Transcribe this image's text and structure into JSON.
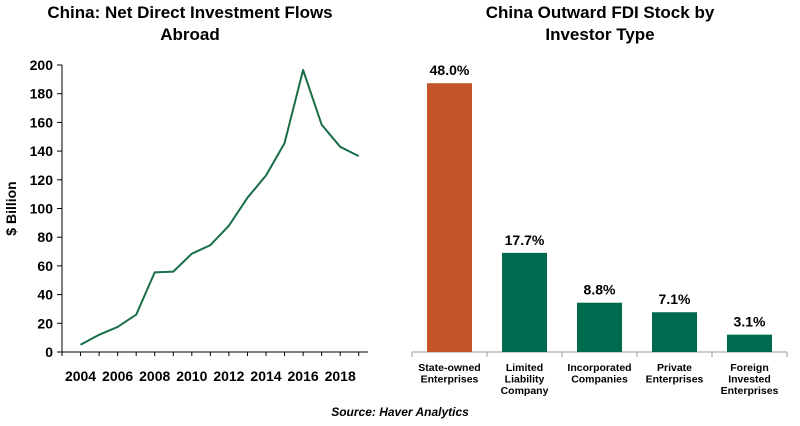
{
  "chart_data": [
    {
      "type": "line",
      "title_line1": "China: Net Direct Investment Flows",
      "title_line2": "Abroad",
      "ylabel": "$ Billion",
      "xlabel": "",
      "ylim": [
        0,
        200
      ],
      "xlim": [
        2003,
        2019.5
      ],
      "yticks": [
        "0",
        "20",
        "40",
        "60",
        "80",
        "100",
        "120",
        "140",
        "160",
        "180",
        "200"
      ],
      "xticks": [
        "2004",
        "2006",
        "2008",
        "2010",
        "2012",
        "2014",
        "2016",
        "2018"
      ],
      "grid": false,
      "color": "#1a6e47",
      "x": [
        2004,
        2005,
        2006,
        2007,
        2008,
        2009,
        2010,
        2011,
        2012,
        2013,
        2014,
        2015,
        2016,
        2017,
        2018,
        2019
      ],
      "values": [
        5,
        12,
        17.5,
        26,
        55.5,
        56,
        68.5,
        74.5,
        88,
        107.5,
        123,
        145.5,
        196.5,
        158.5,
        143,
        136.5
      ]
    },
    {
      "type": "bar",
      "title_line1": "China Outward FDI Stock by",
      "title_line2": "Investor Type",
      "categories": [
        [
          "State-owned",
          "Enterprises"
        ],
        [
          "Limited",
          "Liability",
          "Company"
        ],
        [
          "Incorporated",
          "Companies"
        ],
        [
          "Private",
          "Enterprises"
        ],
        [
          "Foreign",
          "Invested",
          "Enterprises"
        ]
      ],
      "values": [
        48.0,
        17.7,
        8.8,
        7.1,
        3.1
      ],
      "labels": [
        "48.0%",
        "17.7%",
        "8.8%",
        "7.1%",
        "3.1%"
      ],
      "colors": [
        "#c5542a",
        "#006a4e",
        "#006a4e",
        "#006a4e",
        "#006a4e"
      ],
      "ylim": [
        0,
        50
      ]
    }
  ],
  "source": "Source: Haver Analytics"
}
